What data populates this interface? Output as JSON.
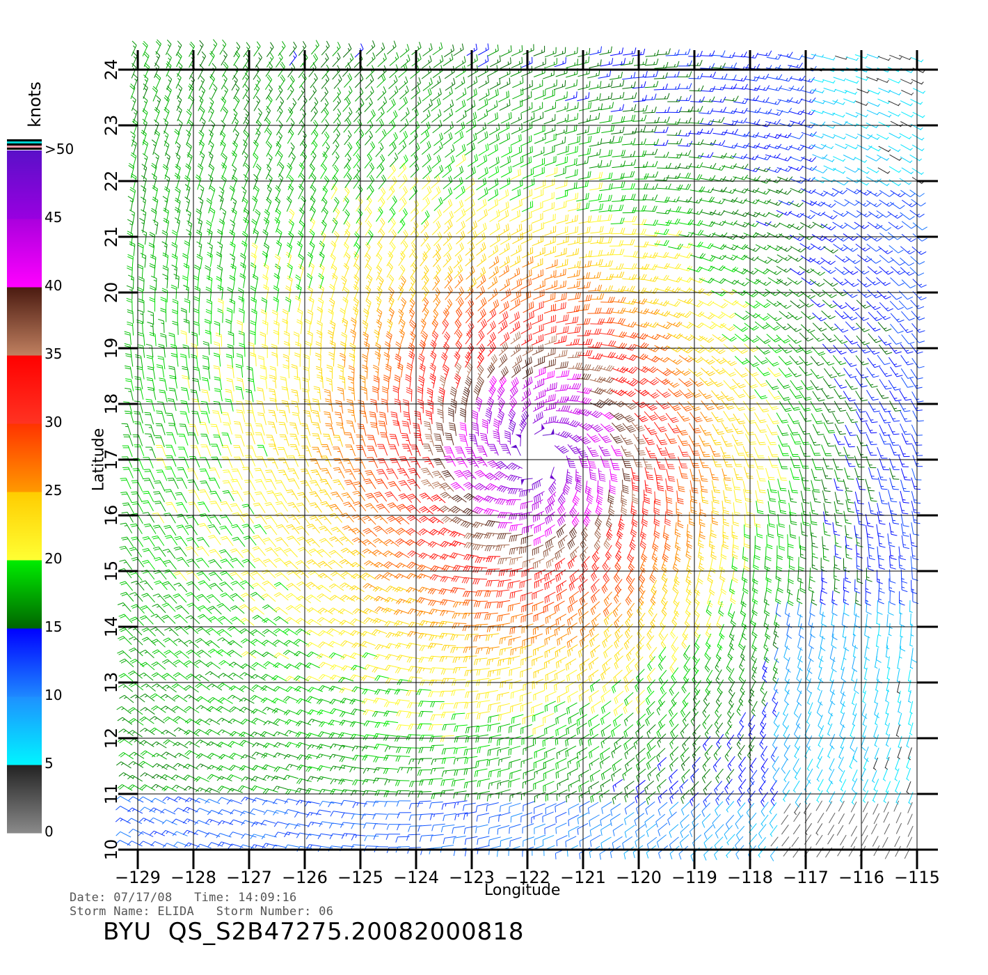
{
  "map": {
    "xlabel": "Longitude",
    "ylabel": "Latitude",
    "lon_range": [
      -129,
      -115
    ],
    "lat_range": [
      10,
      24
    ],
    "lon_ticks": [
      "-129",
      "-128",
      "-127",
      "-126",
      "-125",
      "-124",
      "-123",
      "-122",
      "-121",
      "-120",
      "-119",
      "-118",
      "-117",
      "-116",
      "-115"
    ],
    "lat_ticks": [
      "10",
      "11",
      "12",
      "13",
      "14",
      "15",
      "16",
      "17",
      "18",
      "19",
      "20",
      "21",
      "22",
      "23",
      "24"
    ],
    "grid": true,
    "storm_center": {
      "lon": -121.8,
      "lat": 17.1
    },
    "field": "wind barbs (cyclonic circulation)"
  },
  "colorbar": {
    "unit": "knots",
    "tick_labels": [
      ">50",
      "45",
      "40",
      "35",
      "30",
      "25",
      "20",
      "15",
      "10",
      "5",
      "0"
    ],
    "bands": [
      {
        "from": 0,
        "to": 5,
        "top": "#222222",
        "bottom": "#8a8a8a"
      },
      {
        "from": 5,
        "to": 10,
        "top": "#1e90ff",
        "bottom": "#00f5ff"
      },
      {
        "from": 10,
        "to": 15,
        "top": "#0000ff",
        "bottom": "#1e88ff"
      },
      {
        "from": 15,
        "to": 20,
        "top": "#00ee00",
        "bottom": "#006400"
      },
      {
        "from": 20,
        "to": 25,
        "top": "#ffcc00",
        "bottom": "#ffff33"
      },
      {
        "from": 25,
        "to": 30,
        "top": "#ff3300",
        "bottom": "#ff9900"
      },
      {
        "from": 30,
        "to": 35,
        "top": "#ff0000",
        "bottom": "#ff3322"
      },
      {
        "from": 35,
        "to": 40,
        "top": "#4a1a10",
        "bottom": "#c08060"
      },
      {
        "from": 40,
        "to": 45,
        "top": "#aa00dd",
        "bottom": "#ff00ff"
      },
      {
        "from": 45,
        "to": 50,
        "top": "#5a10c8",
        "bottom": "#9900e0"
      }
    ],
    "top_stripes": [
      "#000000",
      "#00d0d0",
      "#000000",
      "#ff99aa",
      "#000000"
    ]
  },
  "footer": {
    "date_line": "Date: 07/17/08   Time: 14:09:16",
    "storm_line": "Storm Name: ELIDA   Storm Number: 06",
    "file_line": "BYU  QS_S2B47275.20082000818"
  }
}
